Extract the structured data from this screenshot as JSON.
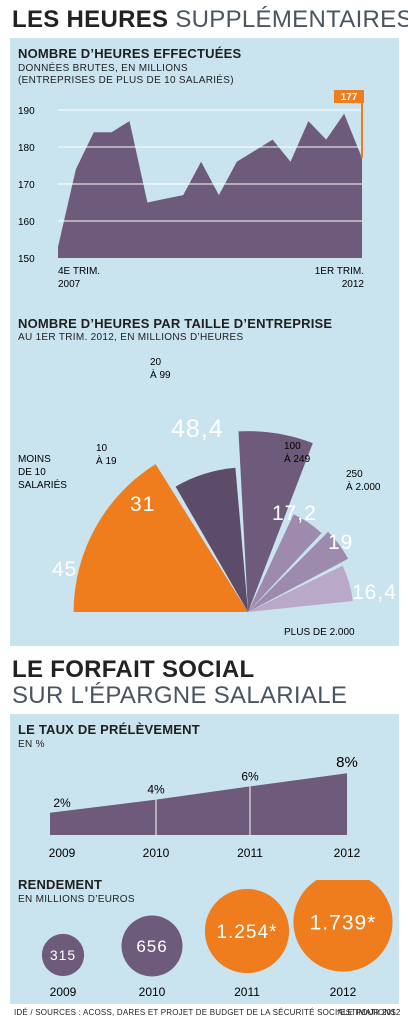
{
  "page_title": {
    "bold": "LES HEURES",
    "light": "SUPPLÉMENTAIRES"
  },
  "chart1_head": {
    "title": "NOMBRE D’HEURES EFFECTUÉES",
    "sub1": "DONNÉES BRUTES, EN MILLIONS",
    "sub2": "(ENTREPRISES DE PLUS DE 10 SALARIÉS)"
  },
  "chart2_head": {
    "title": "NOMBRE D’HEURES PAR TAILLE D’ENTREPRISE",
    "sub": "AU 1ER TRIM. 2012, EN MILLIONS D’HEURES"
  },
  "section2_title": {
    "line1": "LE FORFAIT SOCIAL",
    "line2": "SUR L'ÉPARGNE SALARIALE"
  },
  "chart3_head": {
    "title": "LE TAUX DE PRÉLÈVEMENT",
    "sub": "EN %"
  },
  "chart4_head": {
    "title": "RENDEMENT",
    "sub": "EN MILLIONS D’EUROS"
  },
  "footer": {
    "sources": "IDÉ / SOURCES : ACOSS, DARES ET PROJET DE BUDGET DE LA SÉCURITÉ SOCIALE POUR 2012",
    "estimations": "*ESTIMATIONS"
  },
  "colors": {
    "purple": "#6e5a7a",
    "orange": "#f07d1d",
    "light_blue": "#c9e3ef",
    "lilac": "#9e8aac",
    "light_lilac": "#b9a8c8"
  },
  "chart_data": [
    {
      "type": "area",
      "title": "NOMBRE D’HEURES EFFECTUÉES",
      "ylim": [
        150,
        190
      ],
      "yticks": [
        150,
        160,
        170,
        180,
        190
      ],
      "values": [
        153,
        174,
        184,
        184,
        187,
        165,
        166,
        167,
        176,
        167,
        176,
        179,
        182,
        176,
        187,
        182,
        189,
        177
      ],
      "start_label": [
        "4E TRIM.",
        "2007"
      ],
      "end_label": [
        "1ER TRIM.",
        "2012"
      ],
      "highlight": "177",
      "grid": true
    },
    {
      "type": "pie",
      "title": "NOMBRE D’HEURES PAR TAILLE D’ENTREPRISE",
      "slices": [
        {
          "label": "MOINS DE 10 SALARIÉS",
          "value": 45,
          "value_text": "45",
          "label_lines": [
            "MOINS",
            "DE 10",
            "SALARIÉS"
          ]
        },
        {
          "label": "10 À 19",
          "value": 31,
          "value_text": "31",
          "label_lines": [
            "10",
            "À 19"
          ]
        },
        {
          "label": "20 À 99",
          "value": 48.4,
          "value_text": "48,4",
          "label_lines": [
            "20",
            "À 99"
          ]
        },
        {
          "label": "100 À 249",
          "value": 17.2,
          "value_text": "17,2",
          "label_lines": [
            "100",
            "À 249"
          ]
        },
        {
          "label": "250 À 2.000",
          "value": 19,
          "value_text": "19",
          "label_lines": [
            "250",
            "À 2.000"
          ]
        },
        {
          "label": "PLUS DE 2.000",
          "value": 16.4,
          "value_text": "16,4",
          "label_lines": [
            "PLUS DE 2.000"
          ]
        }
      ]
    },
    {
      "type": "area",
      "title": "LE TAUX DE PRÉLÈVEMENT",
      "categories": [
        "2009",
        "2010",
        "2011",
        "2012"
      ],
      "values": [
        2,
        4,
        6,
        8
      ],
      "value_labels": [
        "2%",
        "4%",
        "6%",
        "8%"
      ]
    },
    {
      "type": "bubble",
      "title": "RENDEMENT",
      "categories": [
        "2009",
        "2010",
        "2011",
        "2012"
      ],
      "values": [
        315,
        656,
        1254,
        1739
      ],
      "value_labels": [
        "315",
        "656",
        "1.254*",
        "1.739*"
      ],
      "estimated": [
        false,
        false,
        true,
        true
      ]
    }
  ]
}
